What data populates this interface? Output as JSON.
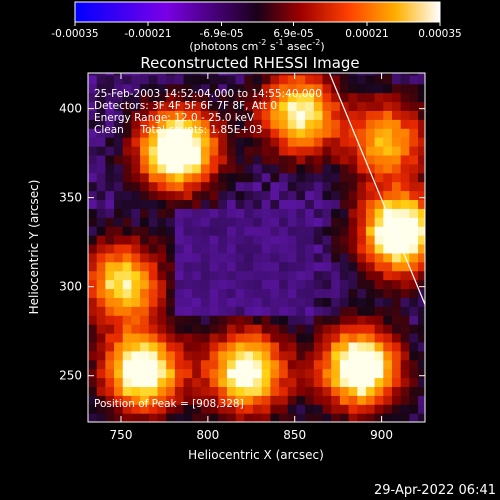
{
  "colorbar": {
    "ticks": [
      "-0.00035",
      "-0.00021",
      "-6.9e-05",
      "6.9e-05",
      "0.00021",
      "0.00035"
    ],
    "tick_values": [
      -0.00035,
      -0.00021,
      -6.9e-05,
      6.9e-05,
      0.00021,
      0.00035
    ],
    "range": [
      -0.00035,
      0.00035
    ],
    "unit_main": "(photons cm",
    "unit_exp1": "-2",
    "unit_mid": " s",
    "unit_exp2": "-1",
    "unit_asec": " asec",
    "unit_exp3": "-2",
    "unit_end": ")"
  },
  "chart_data": {
    "type": "heatmap",
    "title": "Reconstructed RHESSI Image",
    "xlabel": "Heliocentric X (arcsec)",
    "ylabel": "Heliocentric Y (arcsec)",
    "xlim": [
      731,
      925
    ],
    "ylim": [
      224,
      420
    ],
    "xticks": [
      750,
      800,
      850,
      900
    ],
    "yticks": [
      250,
      300,
      350,
      400
    ],
    "limb_line": [
      [
        870,
        420
      ],
      [
        925,
        290
      ]
    ],
    "bright_sources": [
      {
        "x": 780,
        "y": 375,
        "level": 1.0
      },
      {
        "x": 908,
        "y": 328,
        "level": 1.0
      },
      {
        "x": 885,
        "y": 252,
        "level": 0.95
      },
      {
        "x": 760,
        "y": 250,
        "level": 0.9
      },
      {
        "x": 820,
        "y": 250,
        "level": 0.85
      },
      {
        "x": 850,
        "y": 395,
        "level": 0.75
      },
      {
        "x": 748,
        "y": 300,
        "level": 0.7
      },
      {
        "x": 900,
        "y": 380,
        "level": 0.6
      }
    ],
    "annotations": [
      "25-Feb-2003 14:52:04.000 to 14:55:40.000",
      "Detectors: 3F 4F 5F 6F 7F 8F, Att 0",
      "Energy Range: 12.0 - 25.0 keV",
      "Clean     Total counts: 1.85E+03",
      "Position of Peak = [908,328]"
    ]
  },
  "footer": {
    "date": "29-Apr-2022 06:41"
  }
}
